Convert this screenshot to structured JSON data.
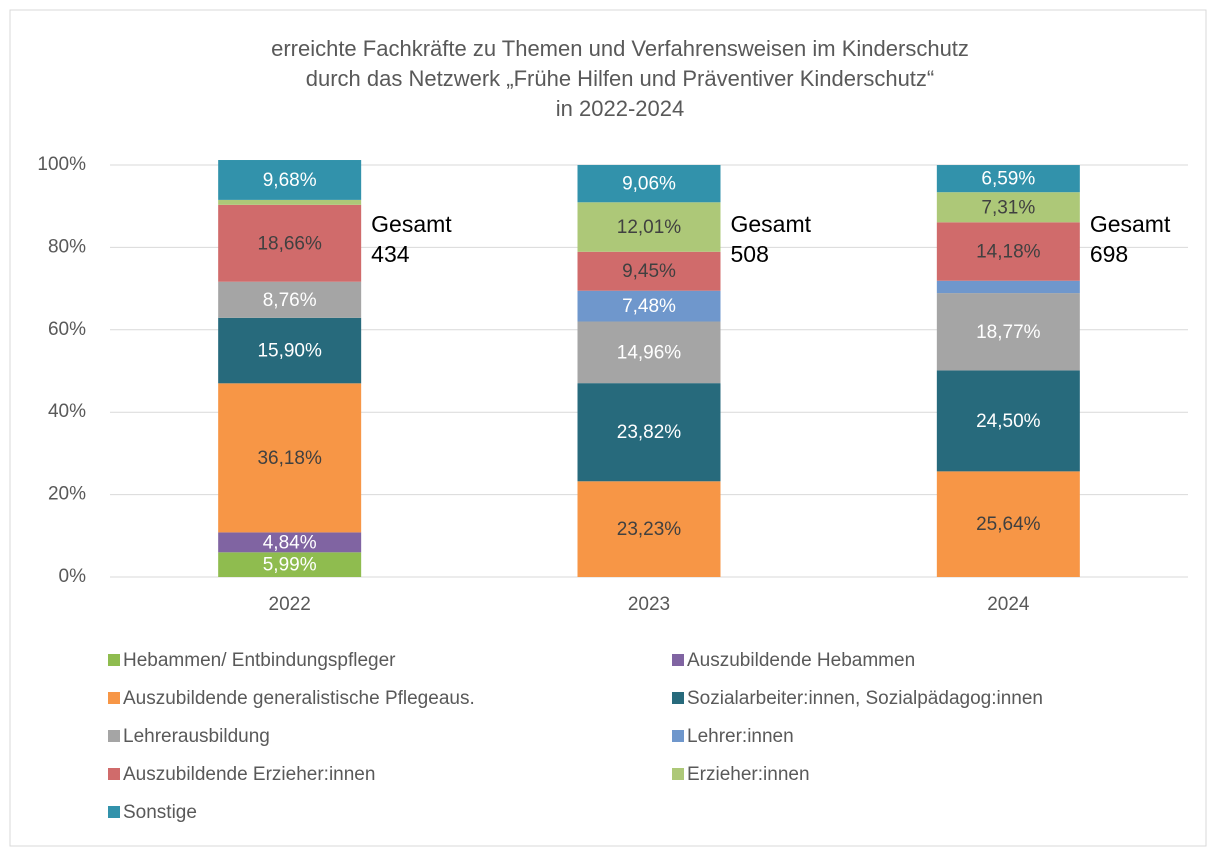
{
  "chart_data": {
    "type": "stacked_bar",
    "title": [
      "erreichte Fachkräfte zu Themen und Verfahrensweisen im Kinderschutz",
      "durch das Netzwerk „Frühe Hilfen und Präventiver Kinderschutz“",
      "in 2022-2024"
    ],
    "categories": [
      "2022",
      "2023",
      "2024"
    ],
    "ylim": [
      0,
      100
    ],
    "yticks": [
      {
        "value": 0,
        "label": "0%"
      },
      {
        "value": 20,
        "label": "20%"
      },
      {
        "value": 40,
        "label": "40%"
      },
      {
        "value": 60,
        "label": "60%"
      },
      {
        "value": 80,
        "label": "80%"
      },
      {
        "value": 100,
        "label": "100%"
      }
    ],
    "grid": true,
    "legend": "bottom",
    "series": [
      {
        "name": "Hebammen/ Entbindungspfleger",
        "color": "#8fbc4f",
        "label_color": "#ffffff",
        "values": [
          5.99,
          0,
          0
        ],
        "value_labels": [
          "5,99%",
          null,
          null
        ]
      },
      {
        "name": "Auszubildende Hebammen",
        "color": "#8064a2",
        "label_color": "#ffffff",
        "values": [
          4.84,
          0,
          0
        ],
        "value_labels": [
          "4,84%",
          null,
          null
        ]
      },
      {
        "name": "Auszubildende generalistische Pflegeaus.",
        "color": "#f79646",
        "label_color": "#404040",
        "values": [
          36.18,
          23.23,
          25.64
        ],
        "value_labels": [
          "36,18%",
          "23,23%",
          "25,64%"
        ]
      },
      {
        "name": "Sozialarbeiter:innen, Sozialpädagog:innen",
        "color": "#276a7c",
        "label_color": "#ffffff",
        "values": [
          15.9,
          23.82,
          24.5
        ],
        "value_labels": [
          "15,90%",
          "23,82%",
          "24,50%"
        ]
      },
      {
        "name": "Lehrerausbildung",
        "color": "#a5a5a5",
        "label_color": "#ffffff",
        "values": [
          8.76,
          14.96,
          18.77
        ],
        "value_labels": [
          "8,76%",
          "14,96%",
          "18,77%"
        ]
      },
      {
        "name": "Lehrer:innen",
        "color": "#6f97cc",
        "label_color": "#ffffff",
        "values": [
          0,
          7.48,
          3.0
        ],
        "value_labels": [
          null,
          "7,48%",
          null
        ]
      },
      {
        "name": "Auszubildende Erzieher:innen",
        "color": "#d06b6b",
        "label_color": "#404040",
        "values": [
          18.66,
          9.45,
          14.18
        ],
        "value_labels": [
          "18,66%",
          "9,45%",
          "14,18%"
        ]
      },
      {
        "name": "Erzieher:innen",
        "color": "#adc878",
        "label_color": "#404040",
        "values": [
          1.2,
          12.01,
          7.31
        ],
        "value_labels": [
          null,
          "12,01%",
          "7,31%"
        ]
      },
      {
        "name": "Sonstige",
        "color": "#3292ab",
        "label_color": "#ffffff",
        "values": [
          9.68,
          9.06,
          6.59
        ],
        "value_labels": [
          "9,68%",
          "9,06%",
          "6,59%"
        ]
      }
    ],
    "annotations": [
      [
        "Gesamt",
        "434"
      ],
      [
        "Gesamt",
        "508"
      ],
      [
        "Gesamt",
        "698"
      ]
    ]
  }
}
